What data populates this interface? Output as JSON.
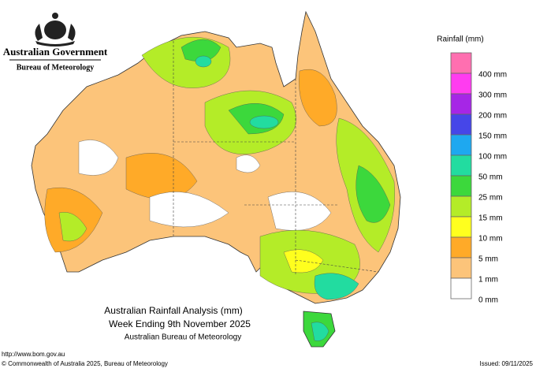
{
  "header": {
    "government": "Australian Government",
    "bureau": "Bureau of Meteorology"
  },
  "legend": {
    "title": "Rainfall (mm)",
    "items": [
      {
        "label": "400 mm",
        "color": "#ff6fb0"
      },
      {
        "label": "300 mm",
        "color": "#ff3cf0"
      },
      {
        "label": "200 mm",
        "color": "#a626e6"
      },
      {
        "label": "150 mm",
        "color": "#4646e8"
      },
      {
        "label": "100 mm",
        "color": "#1ea8f0"
      },
      {
        "label": "50 mm",
        "color": "#22dca0"
      },
      {
        "label": "25 mm",
        "color": "#3cd83c"
      },
      {
        "label": "15 mm",
        "color": "#b4ec28"
      },
      {
        "label": "10 mm",
        "color": "#ffff1e"
      },
      {
        "label": "5 mm",
        "color": "#ffaa28"
      },
      {
        "label": "1 mm",
        "color": "#fcc47a"
      },
      {
        "label": "0 mm",
        "color": "#ffffff"
      }
    ]
  },
  "caption": {
    "title": "Australian Rainfall Analysis (mm)",
    "subtitle": "Week Ending 9th November 2025",
    "source": "Australian Bureau of Meteorology"
  },
  "footer": {
    "url": "http://www.bom.gov.au",
    "copyright": "© Commonwealth of Australia 2025, Bureau of Meteorology",
    "issued": "Issued: 09/11/2025"
  }
}
